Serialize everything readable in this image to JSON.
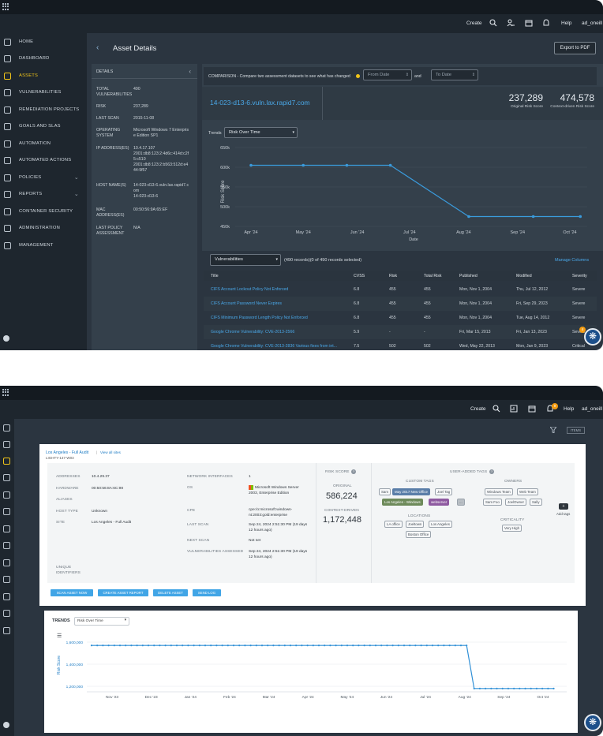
{
  "screenshot1": {
    "header": {
      "create": "Create",
      "help": "Help",
      "user": "ad_oneill"
    },
    "sidebar": [
      {
        "label": "HOME",
        "icon": "home-icon"
      },
      {
        "label": "DASHBOARD",
        "icon": "dashboard-icon"
      },
      {
        "label": "ASSETS",
        "icon": "monitor-icon",
        "active": true
      },
      {
        "label": "VULNERABILITIES",
        "icon": "biohazard-icon"
      },
      {
        "label": "REMEDIATION PROJECTS",
        "icon": "check-circle-icon"
      },
      {
        "label": "GOALS AND SLAS",
        "icon": "target-icon"
      },
      {
        "label": "AUTOMATION",
        "icon": "automation-icon"
      },
      {
        "label": "AUTOMATED ACTIONS",
        "icon": "actions-icon"
      },
      {
        "label": "POLICIES",
        "icon": "policy-icon",
        "expandable": true
      },
      {
        "label": "REPORTS",
        "icon": "reports-icon",
        "expandable": true
      },
      {
        "label": "CONTAINER SECURITY",
        "icon": "container-icon"
      },
      {
        "label": "ADMINISTRATION",
        "icon": "list-icon"
      },
      {
        "label": "MANAGEMENT",
        "icon": "gear-icon"
      }
    ],
    "page_title": "Asset Details",
    "export_label": "Export to PDF",
    "details": {
      "heading": "DETAILS",
      "rows": [
        {
          "label": "TOTAL VULNERABILITIES",
          "value": "490"
        },
        {
          "label": "RISK",
          "value": "237,289"
        },
        {
          "label": "LAST SCAN",
          "value": "2015-11-08"
        },
        {
          "label": "OPERATING SYSTEM",
          "value": "Microsoft Windows 7 Enterprise Edition SP1"
        },
        {
          "label": "IP ADDRESS(ES)",
          "value": "10.4.17.107\n2001:db8:123:2:4d6c:414d:c2f5:c510\n2001:db8:123:2:b563:512d:e444:9f57"
        },
        {
          "label": "HOST NAME(S)",
          "value": "14-023-d13-6.vuln.lax.rapid7.com\n14-023-d13-6"
        },
        {
          "label": "MAC ADDRESS(ES)",
          "value": "00:50:56:9A:65:EF"
        },
        {
          "label": "LAST POLICY ASSESSMENT",
          "value": "N/A"
        }
      ]
    },
    "comparison": {
      "text": "COMPARISON - Compare two assessment datasets to see what has changed",
      "from_placeholder": "From Date",
      "and": "and",
      "to_placeholder": "To Date"
    },
    "asset_name": "14-023-d13-6.vuln.lax.rapid7.com",
    "original_risk": {
      "value": "237,289",
      "label": "Original Risk Score"
    },
    "context_risk": {
      "value": "474,578",
      "label": "Context-driven Risk Score"
    },
    "trends_label": "Trends",
    "trends_select": "Risk Over Time",
    "chart_data": {
      "type": "line",
      "x": [
        "Apr '24",
        "May '24",
        "Jun '24",
        "Jul '24",
        "Aug '24",
        "Sep '24",
        "Oct '24"
      ],
      "xlabel": "Date",
      "ylabel": "Risk Score",
      "yticks": [
        "650k",
        "600k",
        "550k",
        "500k",
        "450k"
      ],
      "ylim": [
        450000,
        650000
      ],
      "points": [
        {
          "x": "2024-04-01",
          "y": 605000
        },
        {
          "x": "2024-05-01",
          "y": 605000
        },
        {
          "x": "2024-05-26",
          "y": 605000
        },
        {
          "x": "2024-06-20",
          "y": 605000
        },
        {
          "x": "2024-08-04",
          "y": 475000
        },
        {
          "x": "2024-09-10",
          "y": 475000
        },
        {
          "x": "2024-10-07",
          "y": 475000
        }
      ]
    },
    "vuln_select": "Vulnerabilities",
    "records_text": "(490 records)(0 of 490 records selected)",
    "manage_columns": "Manage Columns",
    "table_headers": [
      "Title",
      "CVSS",
      "Risk",
      "Total Risk",
      "Published",
      "Modified",
      "Severity"
    ],
    "table_rows": [
      [
        "CIFS Account Lockout Policy Not Enforced",
        "6.8",
        "455",
        "455",
        "Mon, Nov 1, 2004",
        "Thu, Jul 12, 2012",
        "Severe"
      ],
      [
        "CIFS Account Password Never Expires",
        "6.8",
        "455",
        "455",
        "Mon, Nov 1, 2004",
        "Fri, Sep 29, 2023",
        "Severe"
      ],
      [
        "CIFS Minimum Password Length Policy Not Enforced",
        "6.8",
        "455",
        "455",
        "Mon, Nov 1, 2004",
        "Tue, Aug 14, 2012",
        "Severe"
      ],
      [
        "Google Chrome Vulnerability: CVE-2013-2566",
        "5.9",
        "-",
        "-",
        "Fri, Mar 15, 2013",
        "Fri, Jan 13, 2023",
        "Severe"
      ],
      [
        "Google Chrome Vulnerability: CVE-2013-2836 Various fixes from int...",
        "7.5",
        "502",
        "502",
        "Wed, May 22, 2013",
        "Mon, Jan 9, 2023",
        "Critical"
      ]
    ],
    "fab_badge": "4"
  },
  "screenshot2": {
    "header": {
      "create": "Create",
      "help": "Help",
      "user": "ad_oneill",
      "badge": "9"
    },
    "items_button": "ITEMS",
    "site_link": "Los Angeles - Full Audit",
    "view_all": "View all sites",
    "asset_id": "LIGHTY-147-W03",
    "left_fields": [
      {
        "label": "ADDRESSES",
        "value": "10.4.29.37"
      },
      {
        "label": "HARDWARE",
        "value": "00:50:56:8A:6C:98"
      },
      {
        "label": "ALIASES",
        "value": ""
      },
      {
        "label": "HOST TYPE",
        "value": "Unknown"
      },
      {
        "label": "SITE",
        "value": "Los Angeles - Full Audit"
      },
      {
        "label": "UNIQUE IDENTIFIERS",
        "value": ""
      }
    ],
    "mid_fields": [
      {
        "label": "NETWORK INTERFACES",
        "value": "1"
      },
      {
        "label": "OS",
        "value": "Microsoft Windows Server 2003, Enterprise Edition"
      },
      {
        "label": "CPE",
        "value": "cpe:/o:microsoft:windows-nt:2003:gold:enterprise"
      },
      {
        "label": "LAST SCAN",
        "value": "Sep 24, 2024 2:51:30 PM (19 days 12 hours ago)"
      },
      {
        "label": "NEXT SCAN",
        "value": "Not set"
      },
      {
        "label": "VULNERABILITIES ASSESSED",
        "value": "Sep 24, 2024 2:51:30 PM (19 days 12 hours ago)"
      }
    ],
    "risk_header": "RISK SCORE",
    "original_label": "ORIGINAL",
    "original_value": "586,224",
    "context_label": "CONTEXT-DRIVEN",
    "context_value": "1,172,448",
    "tags_header": "USER-ADDED TAGS",
    "custom_tags_label": "CUSTOM TAGS",
    "custom_tags": [
      "Sam",
      "May 2017 New Office",
      "Joel Tag",
      "Los Angeles - Windows",
      "webserver",
      "..."
    ],
    "locations_label": "LOCATIONS",
    "locations": [
      "LA office",
      "Joeltown",
      "Los Angeles",
      "Boston Office"
    ],
    "owners_label": "OWNERS",
    "owners": [
      "Windows Team",
      "Web Team",
      "Sam Foo",
      "JoelOwner",
      "Sally"
    ],
    "criticality_label": "CRITICALITY",
    "criticality": [
      "Very High"
    ],
    "add_tags": "Add tags",
    "buttons": [
      "SCAN ASSET NOW",
      "CREATE ASSET REPORT",
      "DELETE ASSET",
      "SEND LOG"
    ],
    "trends_title": "TRENDS",
    "trends_select": "Risk Over Time",
    "chart_data": {
      "type": "line",
      "x": [
        "Nov '23",
        "Dec '23",
        "Jan '24",
        "Feb '24",
        "Mar '24",
        "Apr '24",
        "May '24",
        "Jun '24",
        "Jul '24",
        "Aug '24",
        "Sep '24",
        "Oct '24"
      ],
      "ylabel": "Risk Score",
      "yticks": [
        "1,600,000",
        "1,400,000",
        "1,200,000"
      ],
      "ylim": [
        1150000,
        1650000
      ],
      "before_value": 1570000,
      "after_value": 1180000,
      "drop_after": "Aug '24"
    }
  }
}
